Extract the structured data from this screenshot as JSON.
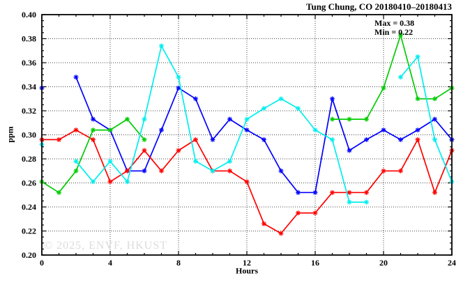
{
  "title": "Tung Chung, CO 20180410–20180413",
  "annotation": {
    "max": "Max = 0.38",
    "min": "Min = 0.22"
  },
  "watermark": "© 2025, ENVF, HKUST",
  "axes": {
    "x_label": "Hours",
    "y_label": "ppm"
  },
  "chart_data": {
    "type": "line",
    "title": "Tung Chung, CO 20180410–20180413",
    "xlabel": "Hours",
    "ylabel": "ppm",
    "xlim": [
      0,
      24
    ],
    "ylim": [
      0.2,
      0.4
    ],
    "grid": true,
    "legend_position": "none",
    "x_major_ticks": [
      0,
      4,
      8,
      12,
      16,
      20,
      24
    ],
    "x_tick_labels": [
      "0",
      "4",
      "8",
      "12",
      "16",
      "20",
      "24"
    ],
    "x_minor_step": 1,
    "y_major_step": 0.02,
    "y_minor_step": 0.005,
    "y_tick_labels": [
      "0.20",
      "0.22",
      "0.24",
      "0.26",
      "0.28",
      "0.30",
      "0.32",
      "0.34",
      "0.36",
      "0.38",
      "0.40"
    ],
    "stats": {
      "max": 0.38,
      "min": 0.22
    },
    "x": [
      0,
      1,
      2,
      3,
      4,
      5,
      6,
      7,
      8,
      9,
      10,
      11,
      12,
      13,
      14,
      15,
      16,
      17,
      18,
      19,
      20,
      21,
      22,
      23,
      24
    ],
    "series": [
      {
        "name": "blue",
        "color": "#0000ff",
        "values": [
          0.339,
          null,
          0.348,
          0.313,
          0.304,
          0.27,
          0.27,
          0.304,
          0.339,
          0.33,
          0.296,
          0.313,
          0.304,
          0.296,
          0.27,
          0.252,
          0.252,
          0.33,
          0.287,
          0.296,
          0.304,
          0.296,
          0.304,
          0.313,
          0.296
        ]
      },
      {
        "name": "red",
        "color": "#ff0000",
        "values": [
          0.296,
          0.296,
          0.304,
          0.296,
          0.261,
          0.27,
          0.287,
          0.27,
          0.287,
          0.296,
          0.27,
          0.27,
          0.261,
          0.226,
          0.218,
          0.235,
          0.235,
          0.252,
          0.252,
          0.252,
          0.27,
          0.27,
          0.296,
          0.252,
          0.287
        ]
      },
      {
        "name": "green",
        "color": "#00cc00",
        "values": [
          0.261,
          0.252,
          0.27,
          0.304,
          0.304,
          0.313,
          0.296,
          null,
          null,
          null,
          null,
          null,
          null,
          null,
          null,
          null,
          null,
          0.313,
          0.313,
          0.313,
          0.339,
          0.383,
          0.33,
          0.33,
          0.339
        ]
      },
      {
        "name": "cyan",
        "color": "#00eeee",
        "values": [
          0.292,
          null,
          0.278,
          0.261,
          0.278,
          0.261,
          0.313,
          0.374,
          0.348,
          0.278,
          0.27,
          0.278,
          0.313,
          0.322,
          0.33,
          0.322,
          0.304,
          0.296,
          0.244,
          0.244,
          null,
          0.348,
          0.365,
          0.296,
          0.261
        ]
      }
    ]
  }
}
